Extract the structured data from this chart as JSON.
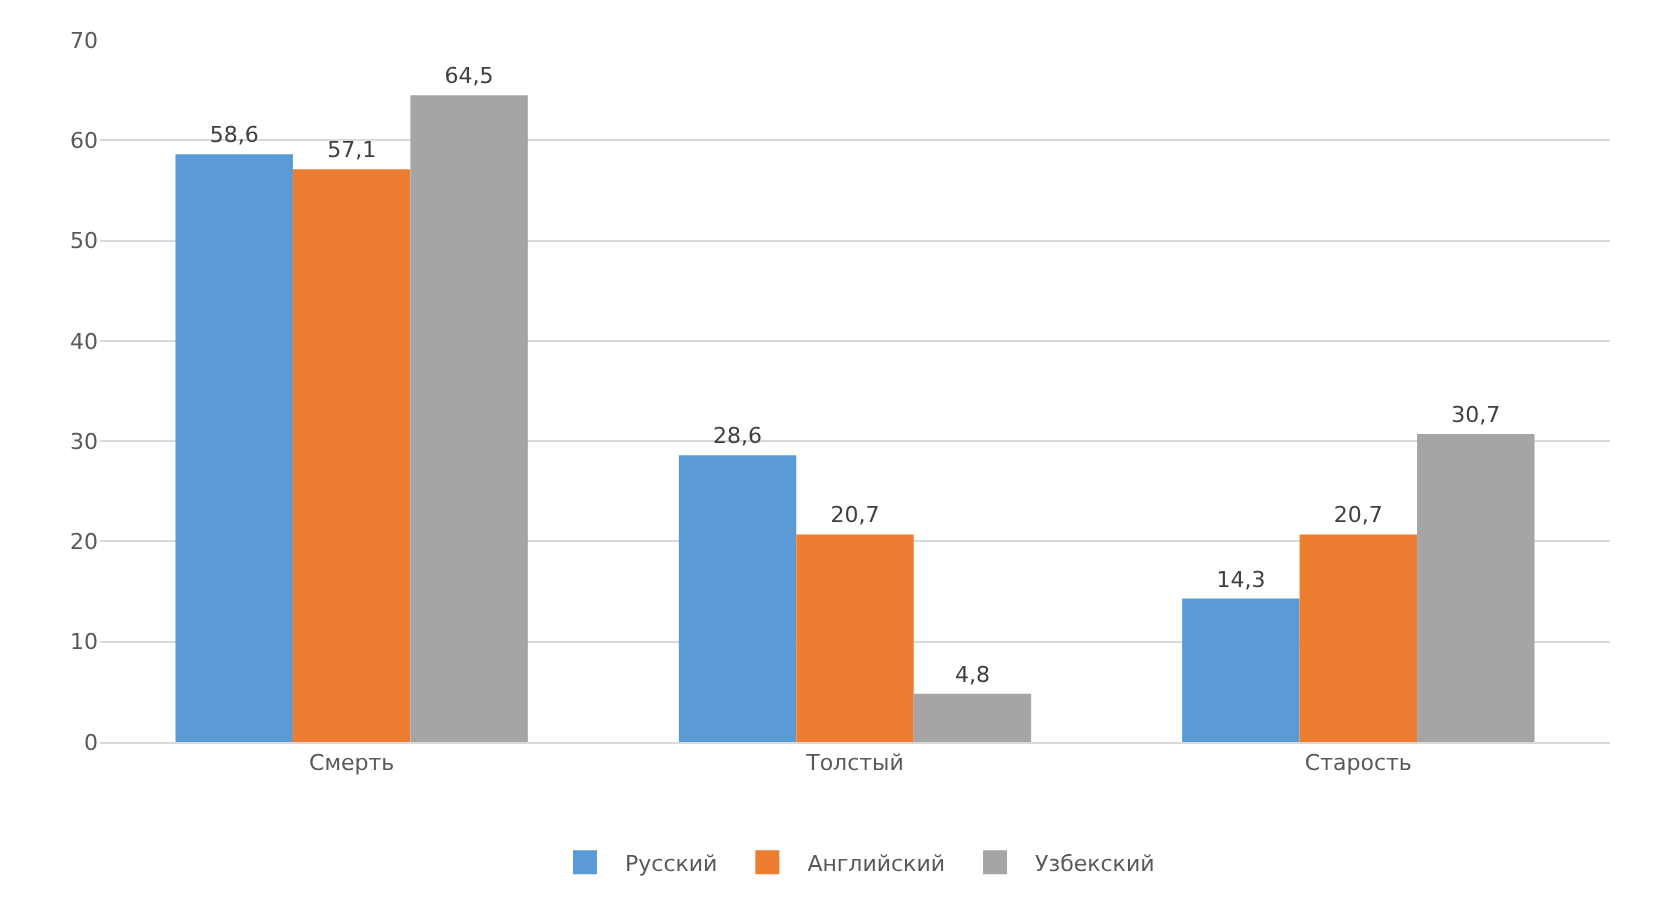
{
  "chart_data": {
    "type": "bar",
    "categories": [
      "Смерть",
      "Толстый",
      "Старость"
    ],
    "series": [
      {
        "name": "Русский",
        "color": "#5b9bd5",
        "values": [
          58.6,
          28.6,
          14.3
        ],
        "value_labels": [
          "58,6",
          "28,6",
          "14,3"
        ]
      },
      {
        "name": "Английский",
        "color": "#ed7d31",
        "values": [
          57.1,
          20.7,
          20.7
        ],
        "value_labels": [
          "57,1",
          "20,7",
          "20,7"
        ]
      },
      {
        "name": "Узбекский",
        "color": "#a5a5a5",
        "values": [
          64.5,
          4.8,
          30.7
        ],
        "value_labels": [
          "64,5",
          "4,8",
          "30,7"
        ]
      }
    ],
    "ylim": [
      0,
      70
    ],
    "yticks": [
      0,
      10,
      20,
      30,
      40,
      50,
      60,
      70
    ],
    "grid": "y",
    "legend": "bottom"
  }
}
